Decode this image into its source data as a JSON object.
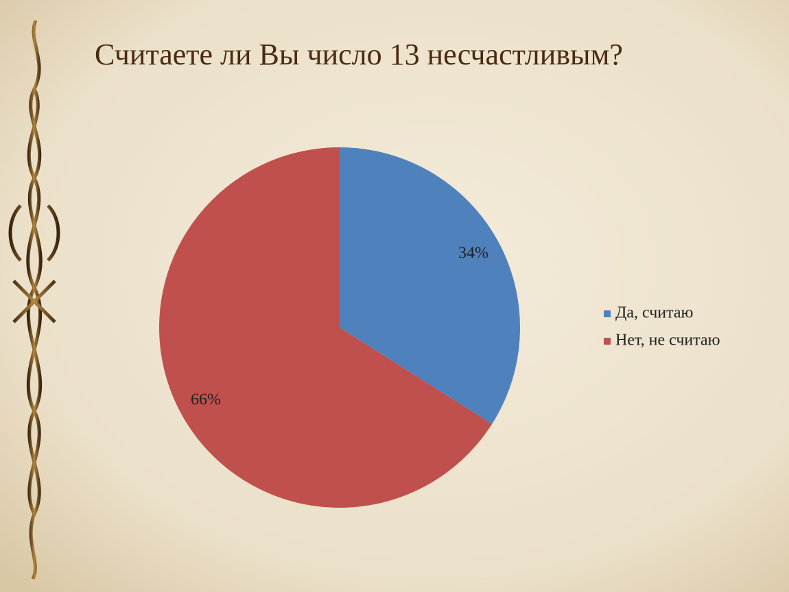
{
  "chart_data": {
    "type": "pie",
    "title": "Считаете ли Вы число 13 несчастливым?",
    "categories": [
      "Да, считаю",
      "Нет, не считаю"
    ],
    "values": [
      34,
      66
    ],
    "value_labels": [
      "34%",
      "66%"
    ],
    "colors": [
      "#4f81bd",
      "#c0504d"
    ],
    "legend": "right"
  }
}
